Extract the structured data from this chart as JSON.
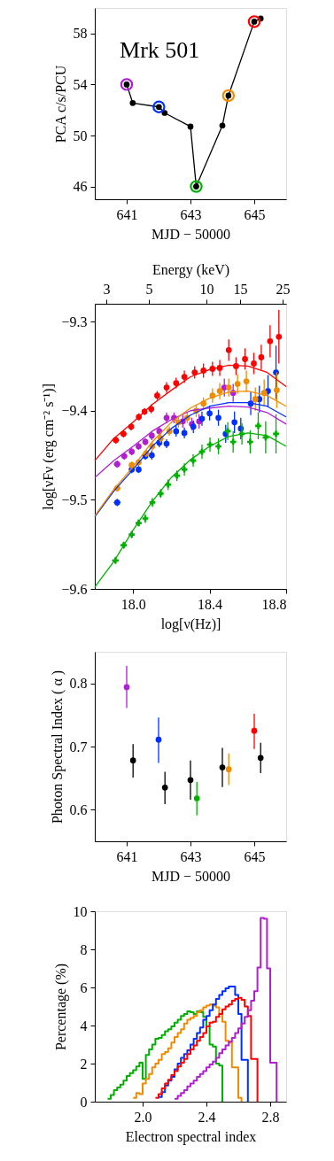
{
  "chart_data": [
    {
      "type": "line",
      "xlabel": "MJD − 50000",
      "ylabel": "PCA c/s/PCU",
      "annotations": [
        "Mrk 501"
      ],
      "xlim": [
        640,
        646
      ],
      "ylim": [
        45,
        60
      ],
      "xticks": [
        641,
        643,
        645
      ],
      "yticks": [
        46,
        50,
        54,
        58
      ],
      "series": [
        {
          "type": "line",
          "color": "#000000",
          "marker": "circle",
          "x": [
            641.0,
            641.19,
            642.01,
            642.19,
            643.0,
            643.18,
            644.0,
            644.19,
            645.0,
            645.2
          ],
          "values": [
            54.0,
            52.55,
            52.24,
            51.77,
            50.7,
            46.0,
            50.78,
            53.13,
            58.93,
            59.17
          ]
        },
        {
          "type": "scatter",
          "marker": "circle",
          "x": [
            641.0,
            642.01,
            643.18,
            644.19,
            645.0
          ],
          "values": [
            54.0,
            52.24,
            46.0,
            53.13,
            58.93
          ],
          "colors": [
            "#b020d0",
            "#0030ff",
            "#00b000",
            "#f08c00",
            "#ff0000"
          ]
        }
      ]
    },
    {
      "type": "scatter",
      "xlabel": "log[ν(Hz)]",
      "ylabel": "log[νFν (erg cm⁻² s⁻¹)]",
      "x2label": "Energy (keV)",
      "xlim": [
        17.8,
        18.8
      ],
      "ylim": [
        -9.6,
        -9.28
      ],
      "xticks": [
        {
          "value": 18.0,
          "label": "18.0"
        },
        {
          "value": 18.4,
          "label": "18.4"
        },
        {
          "value": 18.8,
          "label": "18.8"
        }
      ],
      "yticks": [
        {
          "value": -9.6,
          "label": "−9.6"
        },
        {
          "value": -9.5,
          "label": "−9.5"
        },
        {
          "value": -9.4,
          "label": "−9.4"
        },
        {
          "value": -9.3,
          "label": "−9.3"
        }
      ],
      "x2lim": [
        2.61,
        26.1
      ],
      "x2ticks": [
        3,
        5,
        10,
        15,
        25
      ],
      "log": "x2",
      "series": [
        {
          "type": "scatter",
          "marker": "circle",
          "color": "#ff0000",
          "x": [
            17.91,
            17.95,
            17.99,
            18.03,
            18.06,
            18.095,
            18.126,
            18.175,
            18.225,
            18.268,
            18.322,
            18.368,
            18.415,
            18.453,
            18.5,
            18.538,
            18.585,
            18.631,
            18.67,
            18.716,
            18.762
          ],
          "values": [
            -9.433,
            -9.426,
            -9.418,
            -9.407,
            -9.401,
            -9.398,
            -9.383,
            -9.374,
            -9.369,
            -9.362,
            -9.357,
            -9.355,
            -9.353,
            -9.352,
            -9.332,
            -9.35,
            -9.342,
            -9.347,
            -9.34,
            -9.322,
            -9.317
          ],
          "errors": [
            0.004,
            0.004,
            0.004,
            0.004,
            0.004,
            0.005,
            0.005,
            0.006,
            0.006,
            0.007,
            0.007,
            0.008,
            0.008,
            0.009,
            0.012,
            0.01,
            0.012,
            0.012,
            0.014,
            0.018,
            0.03
          ],
          "xerrors": [
            0.018,
            0.016,
            0.014,
            0.013,
            0.012,
            0.012,
            0.012,
            0.012,
            0.012,
            0.012,
            0.012,
            0.012,
            0.012,
            0.012,
            0.012,
            0.012,
            0.012,
            0.012,
            0.012,
            0.012,
            0.012
          ]
        },
        {
          "type": "scatter",
          "marker": "circle",
          "color": "#b020d0",
          "x": [
            17.917,
            17.954,
            17.993,
            18.029,
            18.064,
            18.098,
            18.137,
            18.175,
            18.214,
            18.26,
            18.307,
            18.345,
            18.477,
            18.523
          ],
          "values": [
            -9.46,
            -9.451,
            -9.446,
            -9.44,
            -9.435,
            -9.428,
            -9.423,
            -9.408,
            -9.408,
            -9.412,
            -9.415,
            -9.412,
            -9.374,
            -9.38
          ],
          "errors": [
            0.004,
            0.004,
            0.004,
            0.004,
            0.004,
            0.005,
            0.005,
            0.006,
            0.006,
            0.007,
            0.007,
            0.008,
            0.01,
            0.01
          ],
          "xerrors": [
            0.018,
            0.016,
            0.014,
            0.013,
            0.012,
            0.012,
            0.012,
            0.012,
            0.012,
            0.012,
            0.012,
            0.012,
            0.012,
            0.012
          ]
        },
        {
          "type": "scatter",
          "marker": "circle",
          "color": "#0030ff",
          "x": [
            17.917,
            17.993,
            18.029,
            18.064,
            18.098,
            18.137,
            18.175,
            18.225,
            18.268,
            18.315,
            18.36,
            18.4,
            18.446,
            18.484,
            18.53,
            18.563,
            18.615,
            18.66,
            18.705,
            18.747
          ],
          "values": [
            -9.503,
            -9.466,
            -9.466,
            -9.451,
            -9.45,
            -9.436,
            -9.437,
            -9.423,
            -9.425,
            -9.418,
            -9.409,
            -9.403,
            -9.408,
            -9.426,
            -9.413,
            -9.42,
            -9.392,
            -9.387,
            -9.378,
            -9.357
          ],
          "errors": [
            0.004,
            0.004,
            0.004,
            0.004,
            0.005,
            0.005,
            0.005,
            0.006,
            0.006,
            0.007,
            0.008,
            0.008,
            0.009,
            0.01,
            0.012,
            0.012,
            0.013,
            0.015,
            0.018,
            0.03
          ],
          "xerrors": [
            0.018,
            0.014,
            0.013,
            0.012,
            0.012,
            0.012,
            0.012,
            0.012,
            0.012,
            0.012,
            0.012,
            0.012,
            0.012,
            0.012,
            0.012,
            0.012,
            0.012,
            0.012,
            0.012,
            0.012
          ]
        },
        {
          "type": "scatter",
          "marker": "circle",
          "color": "#f08c00",
          "x": [
            17.917,
            17.993,
            18.029,
            18.069,
            18.1,
            18.144,
            18.19,
            18.237,
            18.283,
            18.33,
            18.368,
            18.415,
            18.453,
            18.5,
            18.546,
            18.592,
            18.639,
            18.685,
            18.751
          ],
          "values": [
            -9.487,
            -9.461,
            -9.458,
            -9.448,
            -9.44,
            -9.431,
            -9.423,
            -9.413,
            -9.408,
            -9.4,
            -9.392,
            -9.383,
            -9.378,
            -9.374,
            -9.37,
            -9.367,
            -9.387,
            -9.38,
            -9.377
          ],
          "errors": [
            0.004,
            0.004,
            0.004,
            0.004,
            0.005,
            0.005,
            0.005,
            0.006,
            0.006,
            0.007,
            0.007,
            0.008,
            0.009,
            0.01,
            0.011,
            0.012,
            0.013,
            0.015,
            0.02
          ],
          "xerrors": [
            0.018,
            0.014,
            0.013,
            0.012,
            0.012,
            0.012,
            0.012,
            0.012,
            0.012,
            0.012,
            0.012,
            0.012,
            0.012,
            0.012,
            0.012,
            0.012,
            0.012,
            0.012,
            0.012
          ]
        },
        {
          "type": "scatter",
          "marker": "cross",
          "color": "#00b000",
          "x": [
            17.908,
            17.951,
            17.993,
            18.029,
            18.064,
            18.101,
            18.144,
            18.183,
            18.229,
            18.268,
            18.314,
            18.36,
            18.402,
            18.446,
            18.495,
            18.523,
            18.569,
            18.612,
            18.654,
            18.693,
            18.747
          ],
          "values": [
            -9.568,
            -9.551,
            -9.539,
            -9.526,
            -9.521,
            -9.503,
            -9.493,
            -9.483,
            -9.473,
            -9.466,
            -9.456,
            -9.446,
            -9.438,
            -9.44,
            -9.423,
            -9.435,
            -9.426,
            -9.435,
            -9.417,
            -9.43,
            -9.426
          ],
          "errors": [
            0.004,
            0.004,
            0.004,
            0.004,
            0.005,
            0.005,
            0.005,
            0.006,
            0.006,
            0.007,
            0.007,
            0.008,
            0.008,
            0.009,
            0.01,
            0.012,
            0.012,
            0.013,
            0.015,
            0.018,
            0.022
          ],
          "xerrors": [
            0.018,
            0.016,
            0.014,
            0.013,
            0.012,
            0.012,
            0.012,
            0.012,
            0.012,
            0.012,
            0.012,
            0.012,
            0.012,
            0.012,
            0.012,
            0.012,
            0.012,
            0.012,
            0.012,
            0.012,
            0.012
          ]
        },
        {
          "type": "line",
          "color": "#ff0000",
          "marker": "none",
          "x": [
            17.8,
            17.9,
            18.0,
            18.1,
            18.2,
            18.3,
            18.4,
            18.5,
            18.6,
            18.7,
            18.8
          ],
          "values": [
            -9.456,
            -9.431,
            -9.413,
            -9.393,
            -9.377,
            -9.362,
            -9.354,
            -9.349,
            -9.35,
            -9.357,
            -9.373
          ]
        },
        {
          "type": "line",
          "color": "#b020d0",
          "marker": "none",
          "x": [
            17.8,
            17.9,
            18.0,
            18.1,
            18.2,
            18.3,
            18.4,
            18.5,
            18.6,
            18.7,
            18.8
          ],
          "values": [
            -9.475,
            -9.456,
            -9.44,
            -9.423,
            -9.41,
            -9.4,
            -9.397,
            -9.395,
            -9.396,
            -9.402,
            -9.415
          ]
        },
        {
          "type": "line",
          "color": "#0030ff",
          "marker": "none",
          "x": [
            17.8,
            17.9,
            18.0,
            18.1,
            18.2,
            18.3,
            18.4,
            18.5,
            18.6,
            18.7,
            18.8
          ],
          "values": [
            -9.519,
            -9.49,
            -9.466,
            -9.44,
            -9.42,
            -9.405,
            -9.395,
            -9.391,
            -9.391,
            -9.395,
            -9.407
          ]
        },
        {
          "type": "line",
          "color": "#f08c00",
          "marker": "none",
          "x": [
            17.8,
            17.9,
            18.0,
            18.1,
            18.2,
            18.3,
            18.4,
            18.5,
            18.6,
            18.7,
            18.8
          ],
          "values": [
            -9.518,
            -9.488,
            -9.463,
            -9.435,
            -9.413,
            -9.397,
            -9.386,
            -9.379,
            -9.378,
            -9.383,
            -9.395
          ]
        },
        {
          "type": "line",
          "color": "#00b000",
          "marker": "none",
          "x": [
            17.8,
            17.9,
            18.0,
            18.1,
            18.2,
            18.3,
            18.4,
            18.5,
            18.6,
            18.7,
            18.8
          ],
          "values": [
            -9.598,
            -9.569,
            -9.534,
            -9.502,
            -9.475,
            -9.455,
            -9.44,
            -9.429,
            -9.425,
            -9.428,
            -9.44
          ]
        }
      ]
    },
    {
      "type": "scatter",
      "xlabel": "MJD − 50000",
      "ylabel": "Photon Spectral Index ( α )",
      "xlim": [
        640,
        646
      ],
      "ylim": [
        0.55,
        0.85
      ],
      "xticks": [
        641,
        643,
        645
      ],
      "yticks": [
        0.6,
        0.7,
        0.8
      ],
      "marker": "circle",
      "x": [
        641.0,
        641.2,
        642.0,
        642.2,
        643.0,
        643.2,
        644.0,
        644.2,
        645.0,
        645.2
      ],
      "values": [
        0.794,
        0.678,
        0.711,
        0.635,
        0.647,
        0.618,
        0.667,
        0.664,
        0.725,
        0.682
      ],
      "errors": [
        [
          0.761,
          0.828
        ],
        [
          0.651,
          0.704
        ],
        [
          0.674,
          0.746
        ],
        [
          0.609,
          0.66
        ],
        [
          0.616,
          0.678
        ],
        [
          0.591,
          0.644
        ],
        [
          0.636,
          0.698
        ],
        [
          0.639,
          0.689
        ],
        [
          0.696,
          0.752
        ],
        [
          0.658,
          0.706
        ]
      ],
      "colors": [
        "#b020d0",
        "#000000",
        "#0030ff",
        "#000000",
        "#000000",
        "#00b000",
        "#000000",
        "#f08c00",
        "#ff0000",
        "#000000"
      ]
    },
    {
      "type": "step",
      "xlabel": "Electron spectral index",
      "ylabel": "Percentage (%)",
      "xlim": [
        1.7,
        2.9
      ],
      "ylim": [
        0,
        10
      ],
      "xticks": [
        {
          "value": 2.0,
          "label": "2.0"
        },
        {
          "value": 2.4,
          "label": "2.4"
        },
        {
          "value": 2.8,
          "label": "2.8"
        }
      ],
      "yticks": [
        0,
        2,
        4,
        6,
        8,
        10
      ],
      "series": [
        {
          "color": "#00b000",
          "x": [
            1.78,
            1.8,
            1.82,
            1.84,
            1.86,
            1.88,
            1.9,
            1.92,
            1.94,
            1.96,
            1.98,
            2.0,
            2.02,
            2.04,
            2.06,
            2.08,
            2.1,
            2.12,
            2.14,
            2.16,
            2.18,
            2.2,
            2.22,
            2.24,
            2.26,
            2.28,
            2.3,
            2.32,
            2.34,
            2.36,
            2.38,
            2.4,
            2.42,
            2.44,
            2.46,
            2.48,
            2.5
          ],
          "values": [
            0.15,
            0.35,
            0.6,
            0.75,
            0.9,
            1.1,
            1.35,
            1.5,
            1.65,
            1.85,
            2.05,
            1.2,
            2.45,
            2.75,
            3.0,
            3.3,
            3.35,
            3.5,
            3.7,
            3.8,
            3.95,
            4.15,
            4.3,
            4.5,
            4.6,
            4.75,
            4.7,
            4.6,
            4.75,
            4.7,
            4.45,
            3.95,
            3.0,
            2.9,
            2.0,
            1.9,
            0
          ]
        },
        {
          "color": "#f08c00",
          "x": [
            1.94,
            1.96,
            1.98,
            2.0,
            2.02,
            2.04,
            2.06,
            2.08,
            2.1,
            2.12,
            2.14,
            2.16,
            2.18,
            2.2,
            2.22,
            2.24,
            2.26,
            2.28,
            2.3,
            2.32,
            2.34,
            2.36,
            2.38,
            2.4,
            2.42,
            2.44,
            2.46,
            2.48,
            2.5,
            2.52,
            2.54,
            2.56,
            2.58,
            2.6,
            2.62
          ],
          "values": [
            0.2,
            0.45,
            0.4,
            0.95,
            1.2,
            1.45,
            1.8,
            2.0,
            2.2,
            2.5,
            2.6,
            2.8,
            3.1,
            3.4,
            3.6,
            3.8,
            4.1,
            4.3,
            4.4,
            4.5,
            4.7,
            4.8,
            4.95,
            5.05,
            5.1,
            5.05,
            4.95,
            4.6,
            4.2,
            3.2,
            3.1,
            1.8,
            1.8,
            0.2,
            0
          ]
        },
        {
          "color": "#0030ff",
          "x": [
            2.1,
            2.12,
            2.14,
            2.16,
            2.18,
            2.2,
            2.22,
            2.24,
            2.26,
            2.28,
            2.3,
            2.32,
            2.34,
            2.36,
            2.38,
            2.4,
            2.42,
            2.44,
            2.46,
            2.48,
            2.5,
            2.52,
            2.54,
            2.56,
            2.58,
            2.6,
            2.62,
            2.64,
            2.66
          ],
          "values": [
            0.25,
            0.5,
            0.85,
            1.1,
            1.3,
            1.7,
            2.0,
            2.3,
            2.5,
            2.7,
            3.0,
            3.3,
            3.6,
            3.9,
            4.3,
            4.5,
            4.8,
            5.1,
            5.4,
            5.6,
            5.8,
            5.95,
            6.05,
            6.05,
            5.6,
            4.6,
            2.2,
            2.2,
            0
          ]
        },
        {
          "color": "#ff0000",
          "x": [
            2.08,
            2.1,
            2.12,
            2.14,
            2.16,
            2.18,
            2.2,
            2.22,
            2.24,
            2.26,
            2.28,
            2.3,
            2.32,
            2.34,
            2.36,
            2.38,
            2.4,
            2.42,
            2.44,
            2.46,
            2.48,
            2.5,
            2.52,
            2.54,
            2.56,
            2.58,
            2.6,
            2.62,
            2.64,
            2.66,
            2.68,
            2.7,
            2.72
          ],
          "values": [
            0.2,
            0.4,
            0.7,
            0.95,
            1.15,
            1.4,
            1.6,
            1.85,
            2.05,
            2.25,
            2.5,
            2.75,
            2.95,
            3.2,
            3.4,
            3.6,
            3.95,
            4.15,
            4.2,
            4.45,
            4.6,
            4.85,
            5.0,
            5.1,
            5.3,
            5.4,
            5.45,
            5.35,
            5.0,
            4.5,
            2.25,
            2.25,
            0
          ]
        },
        {
          "color": "#b020d0",
          "x": [
            2.2,
            2.22,
            2.24,
            2.26,
            2.28,
            2.3,
            2.32,
            2.34,
            2.36,
            2.38,
            2.4,
            2.42,
            2.44,
            2.46,
            2.48,
            2.5,
            2.52,
            2.54,
            2.56,
            2.58,
            2.6,
            2.62,
            2.64,
            2.66,
            2.68,
            2.7,
            2.72,
            2.74,
            2.76,
            2.78,
            2.8,
            2.82,
            2.84
          ],
          "values": [
            0.15,
            0.3,
            0.45,
            0.6,
            0.8,
            0.95,
            1.1,
            1.3,
            1.45,
            1.6,
            1.8,
            1.95,
            2.1,
            2.3,
            2.55,
            2.75,
            2.95,
            3.15,
            3.35,
            3.6,
            3.85,
            4.1,
            4.45,
            4.8,
            5.3,
            5.8,
            7.05,
            9.65,
            9.6,
            7.0,
            2.05,
            2.05,
            0
          ]
        }
      ]
    }
  ]
}
